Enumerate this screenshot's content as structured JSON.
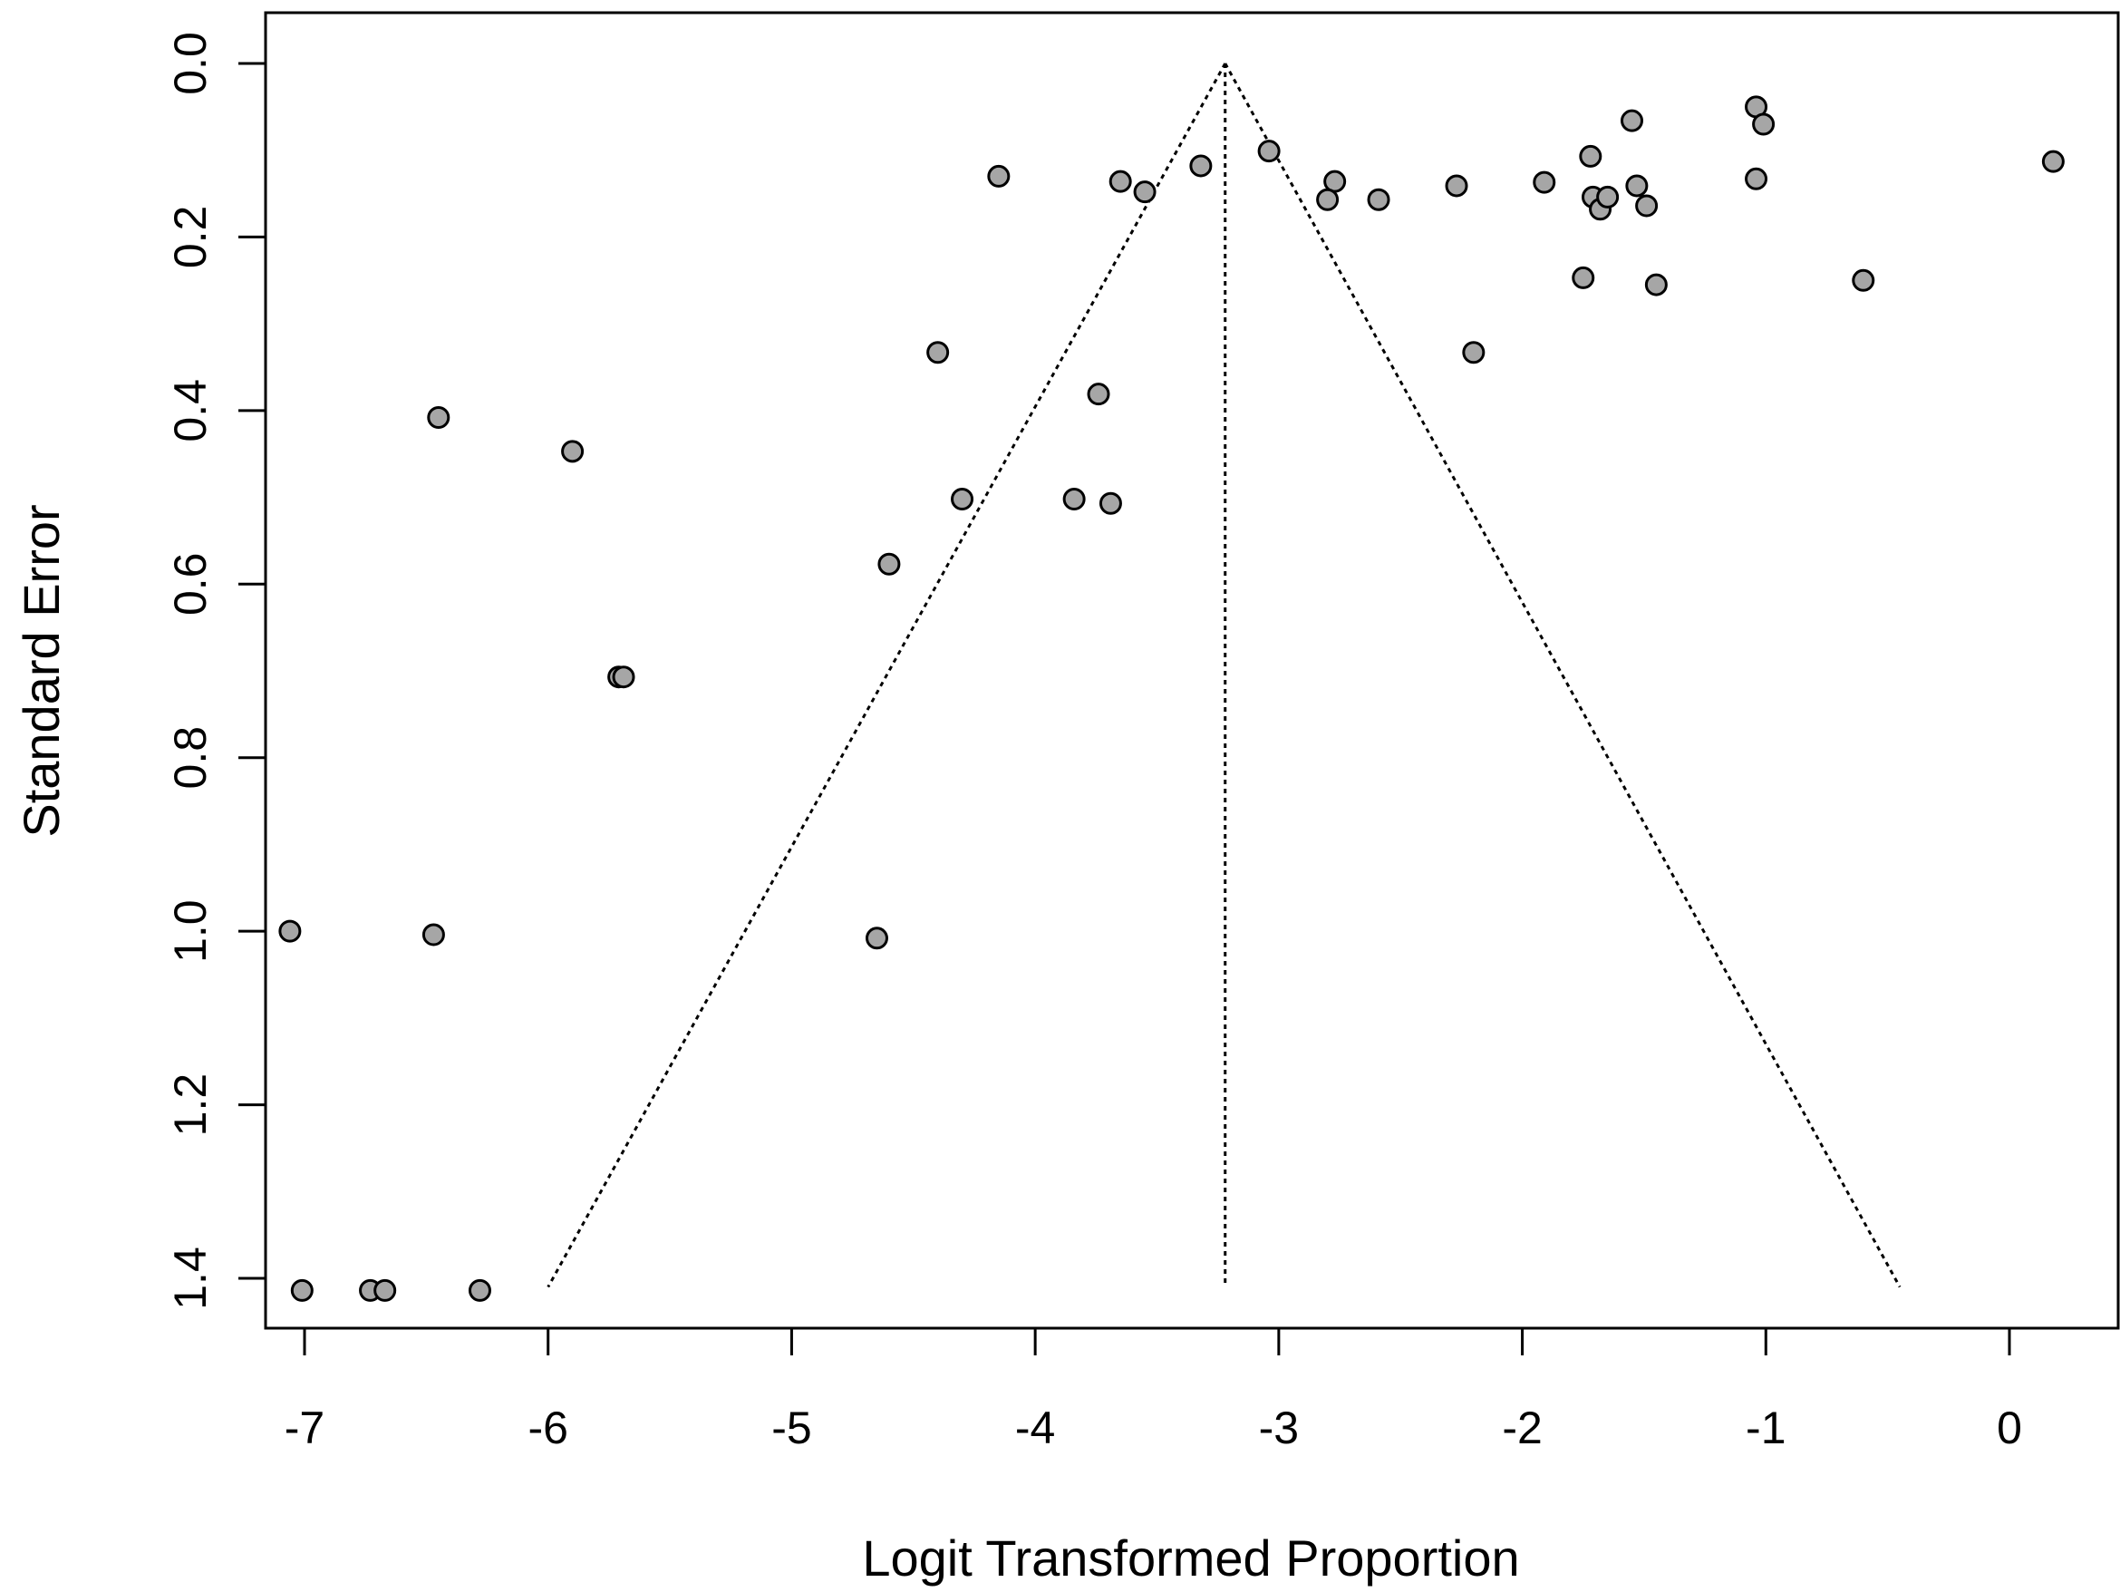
{
  "chart_data": {
    "type": "scatter",
    "title": "",
    "xlabel": "Logit Transformed Proportion",
    "ylabel": "Standard Error",
    "xlim": [
      -7.1,
      0.45
    ],
    "ylim": [
      0.0,
      1.41
    ],
    "y_reversed": true,
    "x_ticks": [
      -7,
      -6,
      -5,
      -4,
      -3,
      -2,
      -1,
      0
    ],
    "x_tick_labels": [
      "-7",
      "-6",
      "-5",
      "-4",
      "-3",
      "-2",
      "-1",
      "0"
    ],
    "y_ticks": [
      0.0,
      0.2,
      0.4,
      0.6,
      0.8,
      1.0,
      1.2,
      1.4
    ],
    "y_tick_labels": [
      "0.0",
      "0.2",
      "0.4",
      "0.6",
      "0.8",
      "1.0",
      "1.2",
      "1.4"
    ],
    "grid": false,
    "legend": "none",
    "funnel": {
      "center_x": -3.22,
      "apex_se": 0.0,
      "base_se": 1.41,
      "base_left_x": -6.0,
      "base_right_x": -0.45,
      "line_style": "dotted"
    },
    "point_color": "#a6a6a6",
    "point_edge_color": "#000000",
    "points": [
      {
        "x": -1.55,
        "y": 0.066
      },
      {
        "x": -1.04,
        "y": 0.05
      },
      {
        "x": -1.01,
        "y": 0.07
      },
      {
        "x": 0.18,
        "y": 0.113
      },
      {
        "x": -1.72,
        "y": 0.107
      },
      {
        "x": -3.04,
        "y": 0.101
      },
      {
        "x": -3.32,
        "y": 0.118
      },
      {
        "x": -4.15,
        "y": 0.13
      },
      {
        "x": -3.65,
        "y": 0.136
      },
      {
        "x": -3.55,
        "y": 0.148
      },
      {
        "x": -2.77,
        "y": 0.136
      },
      {
        "x": -2.8,
        "y": 0.157
      },
      {
        "x": -2.59,
        "y": 0.157
      },
      {
        "x": -2.27,
        "y": 0.141
      },
      {
        "x": -1.91,
        "y": 0.137
      },
      {
        "x": -1.71,
        "y": 0.154
      },
      {
        "x": -1.68,
        "y": 0.168
      },
      {
        "x": -1.65,
        "y": 0.154
      },
      {
        "x": -1.53,
        "y": 0.141
      },
      {
        "x": -1.49,
        "y": 0.164
      },
      {
        "x": -1.04,
        "y": 0.133
      },
      {
        "x": -1.75,
        "y": 0.247
      },
      {
        "x": -1.45,
        "y": 0.255
      },
      {
        "x": -0.6,
        "y": 0.25
      },
      {
        "x": -2.2,
        "y": 0.333
      },
      {
        "x": -4.4,
        "y": 0.333
      },
      {
        "x": -3.74,
        "y": 0.381
      },
      {
        "x": -6.45,
        "y": 0.408
      },
      {
        "x": -5.9,
        "y": 0.447
      },
      {
        "x": -4.3,
        "y": 0.502
      },
      {
        "x": -3.84,
        "y": 0.502
      },
      {
        "x": -3.69,
        "y": 0.507
      },
      {
        "x": -4.6,
        "y": 0.577
      },
      {
        "x": -5.71,
        "y": 0.707
      },
      {
        "x": -5.69,
        "y": 0.707
      },
      {
        "x": -7.06,
        "y": 1.0
      },
      {
        "x": -6.47,
        "y": 1.004
      },
      {
        "x": -4.65,
        "y": 1.008
      },
      {
        "x": -7.01,
        "y": 1.414
      },
      {
        "x": -6.73,
        "y": 1.414
      },
      {
        "x": -6.67,
        "y": 1.414
      },
      {
        "x": -6.28,
        "y": 1.414
      }
    ]
  }
}
